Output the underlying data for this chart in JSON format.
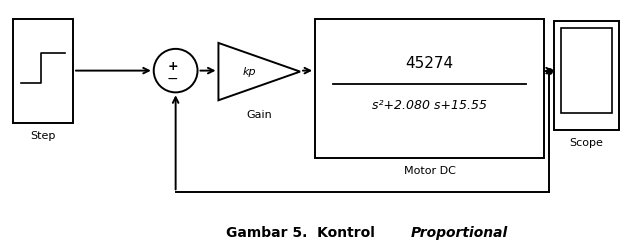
{
  "bg_color": "#ffffff",
  "block_color": "#ffffff",
  "border_color": "#000000",
  "line_color": "#000000",
  "text_color": "#000000",
  "title_normal": "Gambar 5.  Kontrol ",
  "title_italic": "Proportional",
  "step_label": "Step",
  "gain_label": "Gain",
  "gain_text": "kp",
  "tf_num": "45274",
  "tf_den": "s²+2.080 s+15.55",
  "tf_label": "Motor DC",
  "scope_label": "Scope",
  "lw": 1.4
}
